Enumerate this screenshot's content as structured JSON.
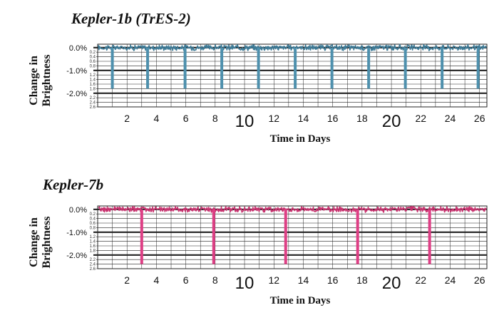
{
  "chart_data": [
    {
      "type": "line",
      "title": "Kepler-1b (TrES-2)",
      "xlabel": "Time in Days",
      "ylabel": "Change in Brightness",
      "xlim": [
        0,
        26.5
      ],
      "ylim": [
        -2.6,
        0.15
      ],
      "x_ticks": [
        {
          "value": 2,
          "label": "2",
          "big": false
        },
        {
          "value": 4,
          "label": "4",
          "big": false
        },
        {
          "value": 6,
          "label": "6",
          "big": false
        },
        {
          "value": 8,
          "label": "8",
          "big": false
        },
        {
          "value": 10,
          "label": "10",
          "big": true
        },
        {
          "value": 12,
          "label": "12",
          "big": false
        },
        {
          "value": 14,
          "label": "14",
          "big": false
        },
        {
          "value": 16,
          "label": "16",
          "big": false
        },
        {
          "value": 18,
          "label": "18",
          "big": false
        },
        {
          "value": 20,
          "label": "20",
          "big": true
        },
        {
          "value": 22,
          "label": "22",
          "big": false
        },
        {
          "value": 24,
          "label": "24",
          "big": false
        },
        {
          "value": 26,
          "label": "26",
          "big": false
        }
      ],
      "y_major_labels": [
        {
          "value": 0,
          "label": "0.0%"
        },
        {
          "value": -1,
          "label": "-1.0%"
        },
        {
          "value": -2,
          "label": "-2.0%"
        }
      ],
      "y_minor_labels": [
        "0.2",
        "0.4",
        "0.6",
        "0.8",
        "1.2",
        "1.4",
        "1.6",
        "1.8",
        "2.2",
        "2.4",
        "2.6"
      ],
      "series_color": "#3d7a96",
      "transit_color": "#4e90ad",
      "transit_depth": -1.8,
      "transit_times": [
        1.0,
        3.4,
        5.95,
        8.45,
        10.95,
        13.45,
        15.95,
        18.45,
        20.95,
        23.45,
        25.9
      ]
    },
    {
      "type": "line",
      "title": "Kepler-7b",
      "xlabel": "Time in Days",
      "ylabel": "Change in Brightness",
      "xlim": [
        0,
        26.5
      ],
      "ylim": [
        -2.6,
        0.15
      ],
      "x_ticks": [
        {
          "value": 2,
          "label": "2",
          "big": false
        },
        {
          "value": 4,
          "label": "4",
          "big": false
        },
        {
          "value": 6,
          "label": "6",
          "big": false
        },
        {
          "value": 8,
          "label": "8",
          "big": false
        },
        {
          "value": 10,
          "label": "10",
          "big": true
        },
        {
          "value": 12,
          "label": "12",
          "big": false
        },
        {
          "value": 14,
          "label": "14",
          "big": false
        },
        {
          "value": 16,
          "label": "16",
          "big": false
        },
        {
          "value": 18,
          "label": "18",
          "big": false
        },
        {
          "value": 20,
          "label": "20",
          "big": true
        },
        {
          "value": 22,
          "label": "22",
          "big": false
        },
        {
          "value": 24,
          "label": "24",
          "big": false
        },
        {
          "value": 26,
          "label": "26",
          "big": false
        }
      ],
      "y_major_labels": [
        {
          "value": 0,
          "label": "0.0%"
        },
        {
          "value": -1,
          "label": "-1.0%"
        },
        {
          "value": -2,
          "label": "-2.0%"
        }
      ],
      "y_minor_labels": [
        "0.2",
        "0.4",
        "0.6",
        "0.8",
        "1.2",
        "1.4",
        "1.6",
        "1.8",
        "2.2",
        "2.4",
        "2.6"
      ],
      "series_color": "#c8336f",
      "transit_color": "#de3f85",
      "transit_depth": -2.4,
      "transit_times": [
        3.0,
        7.9,
        12.8,
        17.7,
        22.6
      ]
    }
  ]
}
